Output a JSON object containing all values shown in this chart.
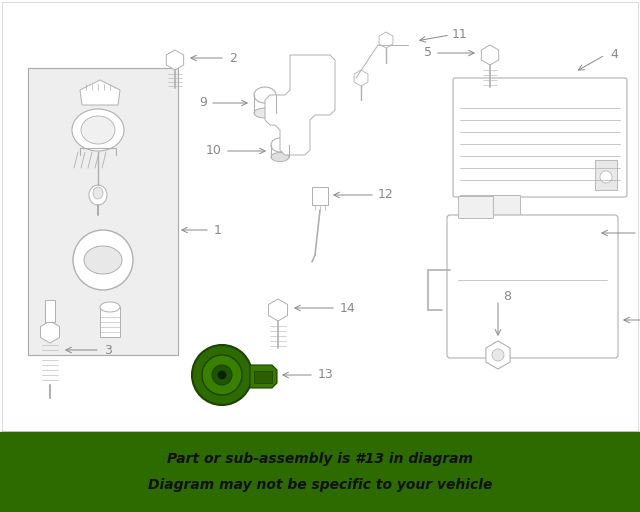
{
  "bg_color": "#ffffff",
  "diagram_color": "#b0b0b0",
  "label_color": "#888888",
  "highlight_color": "#2d6a00",
  "highlight_text_color": "#111111",
  "banner_text_line1": "Part or sub-assembly is #13 in diagram",
  "banner_text_line2": "Diagram may not be specific to your vehicle",
  "figsize": [
    6.4,
    5.12
  ],
  "dpi": 100
}
